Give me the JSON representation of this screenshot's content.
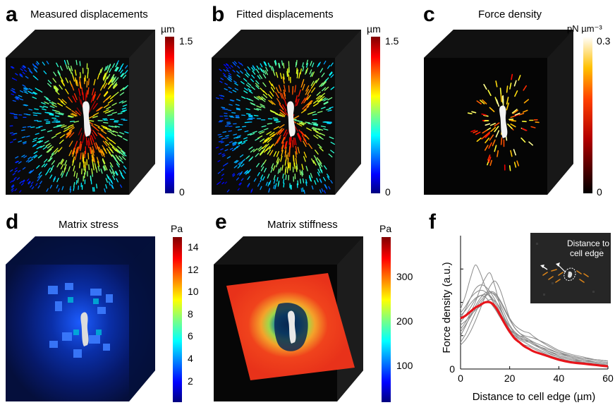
{
  "panels": {
    "a": {
      "letter": "a",
      "title": "Measured displacements",
      "unit": "µm",
      "ticks": [
        "1.5",
        "0"
      ],
      "colormap": "jet"
    },
    "b": {
      "letter": "b",
      "title": "Fitted displacements",
      "unit": "µm",
      "ticks": [
        "1.5",
        "0"
      ],
      "colormap": "jet"
    },
    "c": {
      "letter": "c",
      "title": "Force density",
      "unit": "pN µm⁻³",
      "ticks": [
        "0.3",
        "0"
      ],
      "colormap": "hot"
    },
    "d": {
      "letter": "d",
      "title": "Matrix stress",
      "unit": "Pa",
      "ticks": [
        "14",
        "12",
        "10",
        "8",
        "6",
        "4",
        "2"
      ],
      "colormap": "jet"
    },
    "e": {
      "letter": "e",
      "title": "Matrix stiffness",
      "unit": "Pa",
      "ticks": [
        "300",
        "200",
        "100"
      ],
      "colormap": "jet"
    },
    "f": {
      "letter": "f",
      "inset_label_line1": "Distance to",
      "inset_label_line2": "cell edge"
    }
  },
  "chart_data": {
    "type": "line",
    "xlabel": "Distance to cell edge (µm)",
    "ylabel": "Force density (a.u.)",
    "xlim": [
      0,
      60
    ],
    "ylim": [
      0,
      1
    ],
    "x_ticks": [
      "0",
      "20",
      "40",
      "60"
    ],
    "y_ticks": [
      "0"
    ],
    "mean_color": "#e8151b",
    "individual_color": "#8a8a8a",
    "x": [
      0,
      2,
      4,
      6,
      8,
      10,
      12,
      14,
      16,
      18,
      20,
      22,
      24,
      26,
      28,
      30,
      35,
      40,
      45,
      50,
      55,
      60
    ],
    "series": [
      {
        "values": [
          0.33,
          0.36,
          0.4,
          0.44,
          0.47,
          0.5,
          0.52,
          0.51,
          0.46,
          0.38,
          0.3,
          0.24,
          0.2,
          0.17,
          0.15,
          0.13,
          0.1,
          0.08,
          0.06,
          0.05,
          0.04,
          0.03
        ]
      },
      {
        "values": [
          0.45,
          0.55,
          0.68,
          0.78,
          0.72,
          0.62,
          0.55,
          0.48,
          0.4,
          0.33,
          0.27,
          0.24,
          0.22,
          0.2,
          0.18,
          0.16,
          0.12,
          0.09,
          0.07,
          0.06,
          0.05,
          0.04
        ]
      },
      {
        "values": [
          0.3,
          0.35,
          0.42,
          0.5,
          0.6,
          0.68,
          0.72,
          0.62,
          0.48,
          0.37,
          0.3,
          0.27,
          0.25,
          0.24,
          0.22,
          0.19,
          0.14,
          0.1,
          0.08,
          0.06,
          0.05,
          0.04
        ]
      },
      {
        "values": [
          0.25,
          0.32,
          0.4,
          0.47,
          0.53,
          0.57,
          0.58,
          0.55,
          0.49,
          0.41,
          0.33,
          0.28,
          0.25,
          0.23,
          0.21,
          0.19,
          0.14,
          0.11,
          0.09,
          0.07,
          0.05,
          0.04
        ]
      },
      {
        "values": [
          0.35,
          0.4,
          0.46,
          0.52,
          0.55,
          0.56,
          0.55,
          0.5,
          0.43,
          0.36,
          0.3,
          0.26,
          0.23,
          0.21,
          0.2,
          0.18,
          0.15,
          0.12,
          0.1,
          0.08,
          0.07,
          0.06
        ]
      },
      {
        "values": [
          0.2,
          0.26,
          0.34,
          0.42,
          0.49,
          0.54,
          0.57,
          0.56,
          0.51,
          0.44,
          0.37,
          0.31,
          0.27,
          0.24,
          0.22,
          0.2,
          0.16,
          0.12,
          0.09,
          0.07,
          0.06,
          0.05
        ]
      },
      {
        "values": [
          0.4,
          0.44,
          0.49,
          0.53,
          0.55,
          0.54,
          0.5,
          0.45,
          0.39,
          0.33,
          0.28,
          0.25,
          0.23,
          0.22,
          0.21,
          0.19,
          0.14,
          0.1,
          0.08,
          0.06,
          0.05,
          0.04
        ]
      },
      {
        "values": [
          0.28,
          0.33,
          0.39,
          0.45,
          0.51,
          0.55,
          0.58,
          0.57,
          0.52,
          0.45,
          0.38,
          0.33,
          0.3,
          0.28,
          0.27,
          0.24,
          0.18,
          0.13,
          0.1,
          0.08,
          0.07,
          0.06
        ]
      },
      {
        "values": [
          0.38,
          0.45,
          0.53,
          0.6,
          0.63,
          0.62,
          0.58,
          0.52,
          0.45,
          0.38,
          0.32,
          0.27,
          0.24,
          0.22,
          0.2,
          0.18,
          0.13,
          0.09,
          0.07,
          0.05,
          0.04,
          0.03
        ]
      },
      {
        "values": [
          0.18,
          0.22,
          0.28,
          0.36,
          0.45,
          0.54,
          0.62,
          0.66,
          0.6,
          0.49,
          0.38,
          0.31,
          0.27,
          0.25,
          0.24,
          0.23,
          0.19,
          0.14,
          0.11,
          0.09,
          0.07,
          0.06
        ]
      },
      {
        "values": [
          0.42,
          0.47,
          0.53,
          0.57,
          0.59,
          0.58,
          0.54,
          0.48,
          0.41,
          0.34,
          0.28,
          0.23,
          0.2,
          0.18,
          0.17,
          0.15,
          0.11,
          0.08,
          0.06,
          0.05,
          0.04,
          0.03
        ]
      },
      {
        "values": [
          0.38,
          0.4,
          0.43,
          0.46,
          0.48,
          0.5,
          0.5,
          0.47,
          0.41,
          0.34,
          0.28,
          0.23,
          0.2,
          0.17,
          0.15,
          0.13,
          0.1,
          0.07,
          0.05,
          0.04,
          0.03,
          0.02
        ],
        "role": "mean"
      }
    ]
  }
}
